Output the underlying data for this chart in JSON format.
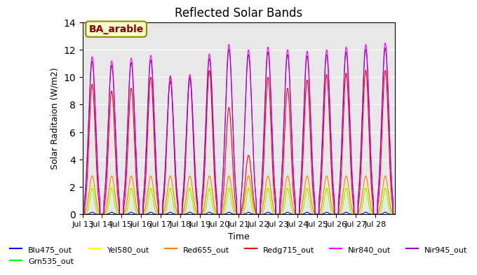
{
  "title": "Reflected Solar Bands",
  "xlabel": "Time",
  "ylabel": "Solar Raditaion (W/m2)",
  "ylim": [
    0,
    14
  ],
  "annotation_text": "BA_arable",
  "annotation_color": "#8B0000",
  "annotation_bg": "#FFFACD",
  "xtick_labels": [
    "Jul 13",
    "Jul 14",
    "Jul 15",
    "Jul 16",
    "Jul 17",
    "Jul 18",
    "Jul 19",
    "Jul 20",
    "Jul 21",
    "Jul 22",
    "Jul 23",
    "Jul 24",
    "Jul 25",
    "Jul 26",
    "Jul 27",
    "Jul 28"
  ],
  "days": 16,
  "points_per_day": 100,
  "bg_color": "#E8E8E8",
  "nir840_peaks": [
    11.5,
    11.2,
    11.4,
    11.6,
    10.0,
    10.2,
    11.7,
    12.4,
    12.0,
    12.2,
    12.0,
    11.9,
    12.0,
    12.2,
    12.4,
    12.5
  ],
  "redg715_peaks": [
    9.5,
    9.0,
    9.2,
    10.0,
    10.1,
    10.0,
    10.5,
    7.8,
    4.3,
    10.0,
    9.2,
    9.8,
    10.2,
    10.3,
    10.5,
    10.5
  ],
  "red655_peak": 2.8,
  "yel580_peak": 2.0,
  "grn535_peak": 1.9,
  "blu475_peak": 0.15,
  "legend": [
    {
      "label": "Blu475_out",
      "color": "#0000FF"
    },
    {
      "label": "Grn535_out",
      "color": "#00FF00"
    },
    {
      "label": "Yel580_out",
      "color": "#FFFF00"
    },
    {
      "label": "Red655_out",
      "color": "#FF8000"
    },
    {
      "label": "Redg715_out",
      "color": "#FF0000"
    },
    {
      "label": "Nir840_out",
      "color": "#FF00FF"
    },
    {
      "label": "Nir945_out",
      "color": "#9900CC"
    }
  ]
}
